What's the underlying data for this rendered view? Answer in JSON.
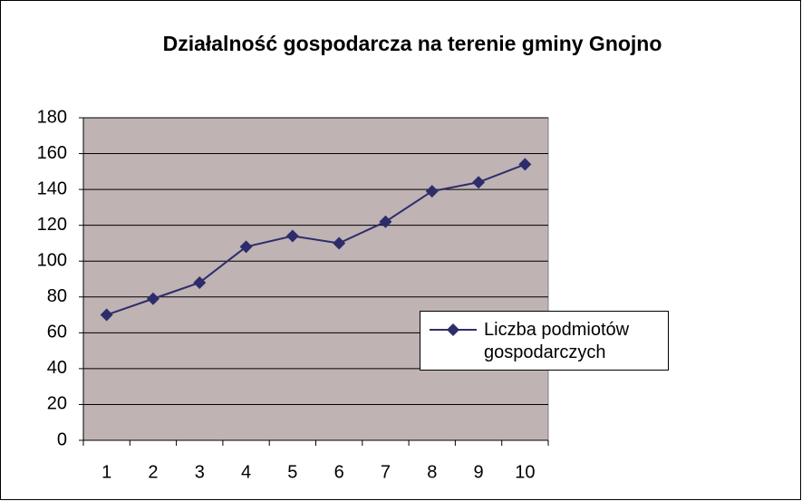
{
  "chart_data": {
    "type": "line",
    "title": "Działalność gospodarcza na terenie gminy Gnojno",
    "categories": [
      "1",
      "2",
      "3",
      "4",
      "5",
      "6",
      "7",
      "8",
      "9",
      "10"
    ],
    "series": [
      {
        "name": "Liczba podmiotów gospodarczych",
        "color": "#2e2d6b",
        "values": [
          70,
          79,
          88,
          108,
          114,
          110,
          122,
          139,
          144,
          154
        ]
      }
    ],
    "ylim": [
      0,
      180
    ],
    "yticks": [
      0,
      20,
      40,
      60,
      80,
      100,
      120,
      140,
      160,
      180
    ],
    "grid": true,
    "plot_background": "#bfb3b3",
    "legend": "right"
  }
}
